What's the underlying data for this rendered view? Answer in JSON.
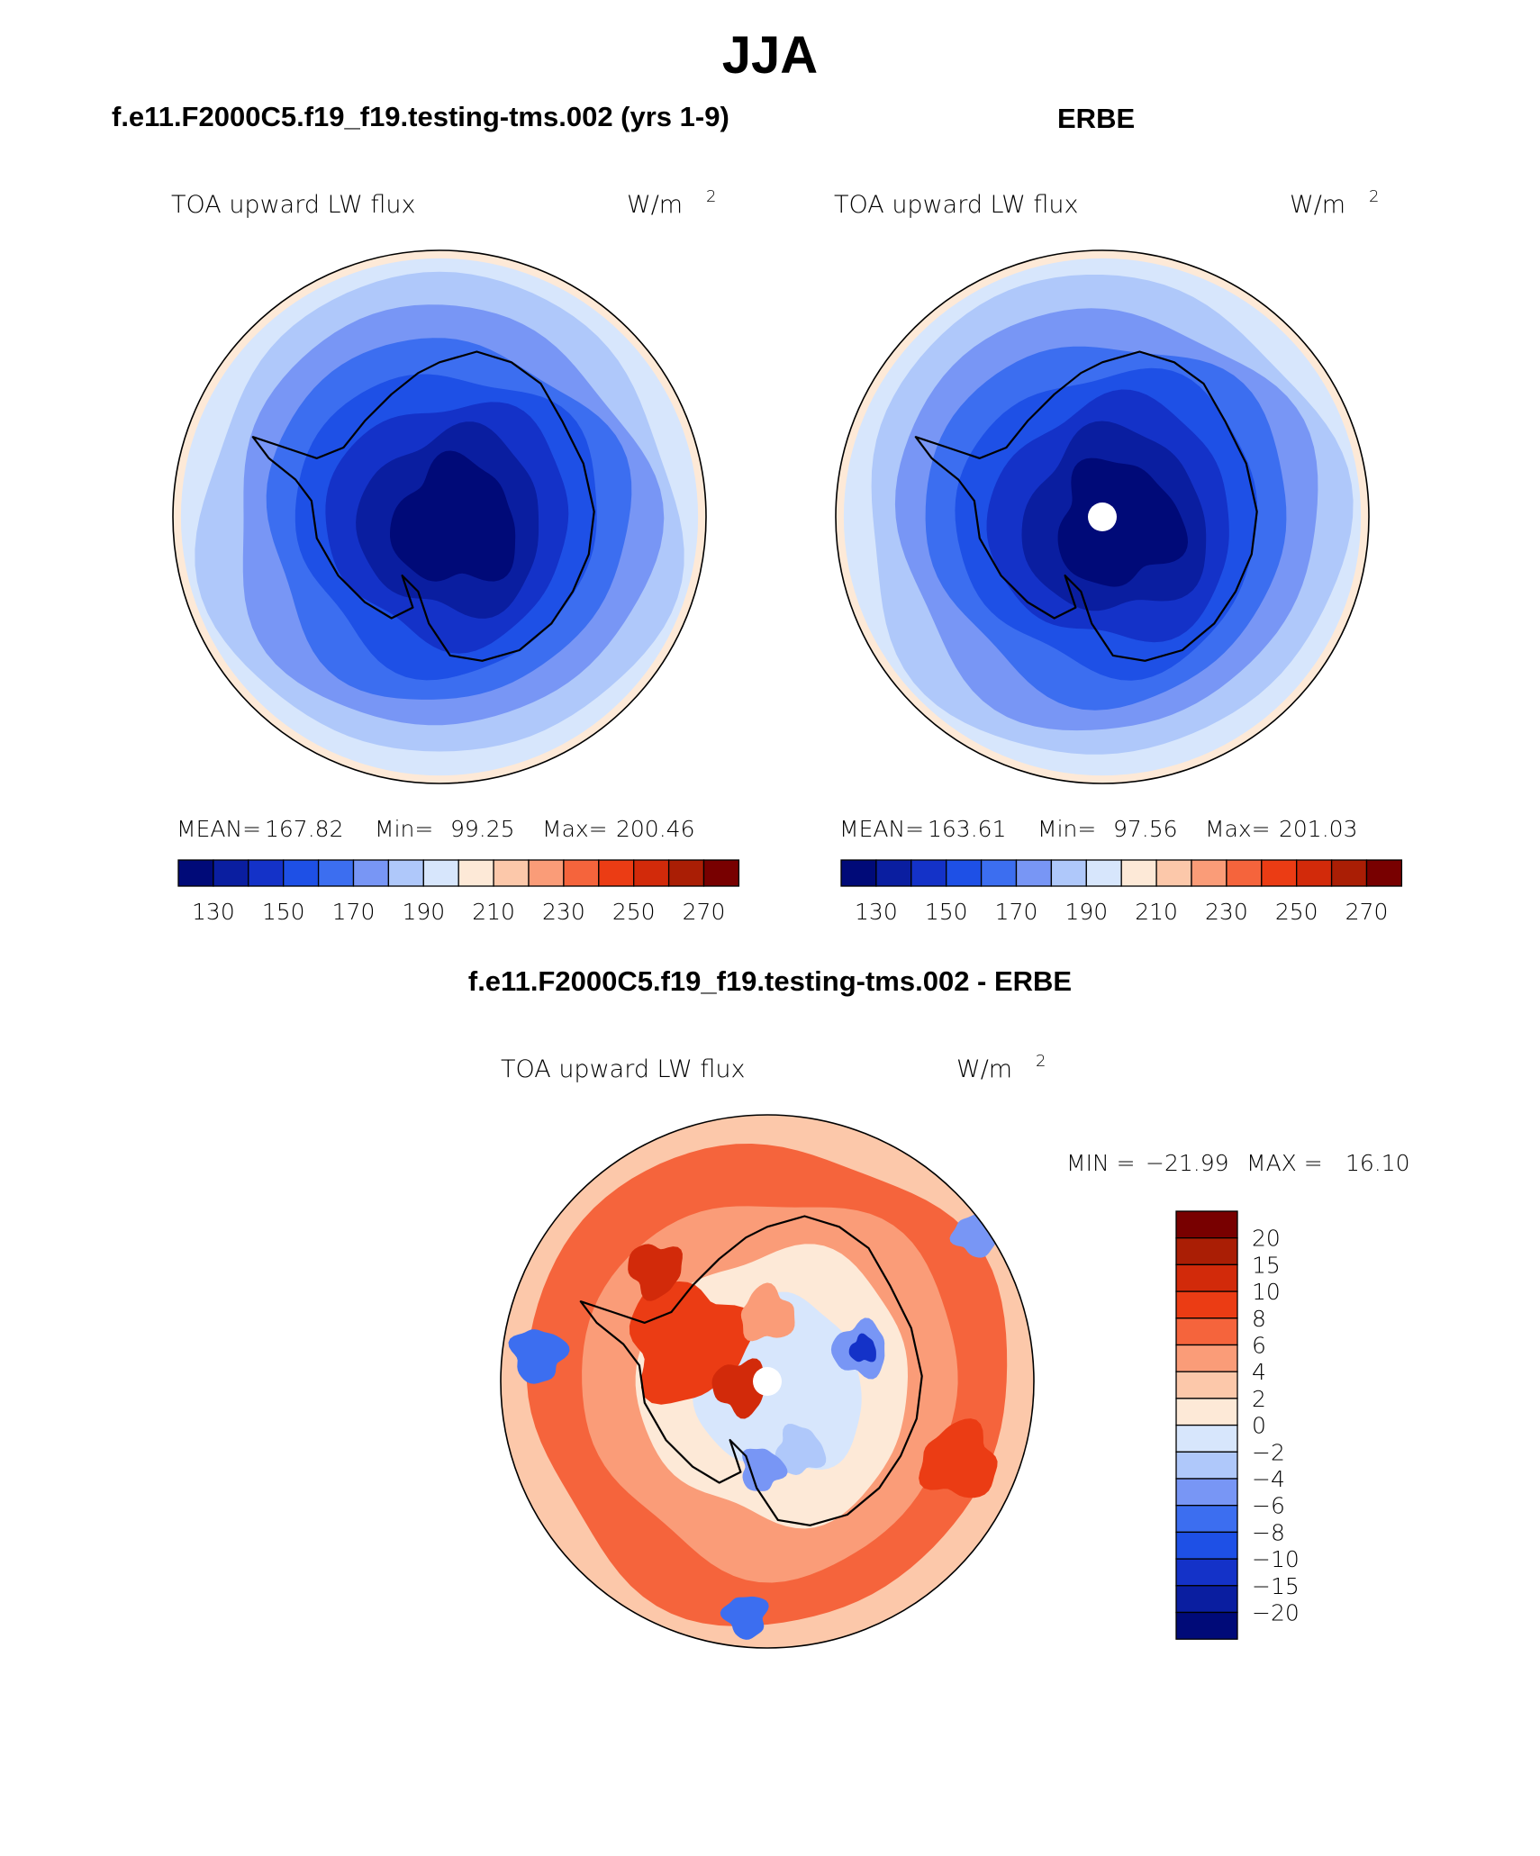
{
  "page": {
    "title": "JJA",
    "left_header": "f.e11.F2000C5.f19_f19.testing-tms.002 (yrs 1-9)",
    "right_header": "ERBE",
    "diff_header": "f.e11.F2000C5.f19_f19.testing-tms.002 - ERBE"
  },
  "chart_data": [
    {
      "type": "heatmap",
      "projection": "south polar stereographic",
      "title": "TOA upward LW flux",
      "units": "W/m",
      "units_exponent": "2",
      "stats": {
        "mean_label": "MEAN=",
        "mean": "167.82",
        "min_label": "Min=",
        "min": "99.25",
        "max_label": "Max=",
        "max": "200.46"
      },
      "colorbar": {
        "levels": [
          130,
          140,
          150,
          160,
          170,
          180,
          190,
          200,
          210,
          220,
          230,
          240,
          250,
          260,
          270
        ],
        "tick_labels": [
          "130",
          "150",
          "170",
          "190",
          "210",
          "230",
          "250",
          "270"
        ],
        "colors": [
          "#000a78",
          "#0a1ea0",
          "#1432c8",
          "#1e50e6",
          "#3c6ef0",
          "#7896f5",
          "#afc8fa",
          "#d7e6fc",
          "#fde9d7",
          "#fcc8aa",
          "#fa9c78",
          "#f5643c",
          "#eb3c14",
          "#d22a0a",
          "#aa1e05",
          "#780000"
        ]
      },
      "rings": [
        {
          "level": 180,
          "color": "#afc8fa"
        },
        {
          "level": 170,
          "color": "#7896f5"
        },
        {
          "level": 160,
          "color": "#3c6ef0"
        },
        {
          "level": 150,
          "color": "#1e50e6"
        },
        {
          "level": 140,
          "color": "#1432c8"
        },
        {
          "level": 130,
          "color": "#0a1ea0"
        },
        {
          "level": 120,
          "color": "#000a78"
        }
      ],
      "background_color": "#d7e6fc",
      "edge_color": "#fde9d7",
      "missing_pole": false
    },
    {
      "type": "heatmap",
      "projection": "south polar stereographic",
      "title": "TOA upward LW flux",
      "units": "W/m",
      "units_exponent": "2",
      "stats": {
        "mean_label": "MEAN=",
        "mean": "163.61",
        "min_label": "Min=",
        "min": "97.56",
        "max_label": "Max=",
        "max": "201.03"
      },
      "colorbar": {
        "levels": [
          130,
          140,
          150,
          160,
          170,
          180,
          190,
          200,
          210,
          220,
          230,
          240,
          250,
          260,
          270
        ],
        "tick_labels": [
          "130",
          "150",
          "170",
          "190",
          "210",
          "230",
          "250",
          "270"
        ],
        "colors": [
          "#000a78",
          "#0a1ea0",
          "#1432c8",
          "#1e50e6",
          "#3c6ef0",
          "#7896f5",
          "#afc8fa",
          "#d7e6fc",
          "#fde9d7",
          "#fcc8aa",
          "#fa9c78",
          "#f5643c",
          "#eb3c14",
          "#d22a0a",
          "#aa1e05",
          "#780000"
        ]
      },
      "rings": [
        {
          "level": 180,
          "color": "#afc8fa"
        },
        {
          "level": 170,
          "color": "#7896f5"
        },
        {
          "level": 160,
          "color": "#3c6ef0"
        },
        {
          "level": 150,
          "color": "#1e50e6"
        },
        {
          "level": 140,
          "color": "#1432c8"
        },
        {
          "level": 130,
          "color": "#0a1ea0"
        },
        {
          "level": 120,
          "color": "#000a78"
        }
      ],
      "background_color": "#d7e6fc",
      "edge_color": "#fde9d7",
      "missing_pole": true
    },
    {
      "type": "heatmap",
      "projection": "south polar stereographic",
      "title": "TOA upward LW flux",
      "units": "W/m",
      "units_exponent": "2",
      "stats": {
        "min_label": "MIN =",
        "min": "−21.99",
        "max_label": "MAX =",
        "max": "16.10"
      },
      "colorbar": {
        "tick_labels": [
          "20",
          "15",
          "10",
          "8",
          "6",
          "4",
          "2",
          "0",
          "−2",
          "−4",
          "−6",
          "−8",
          "−10",
          "−15",
          "−20"
        ],
        "colors": [
          "#780000",
          "#aa1e05",
          "#d22a0a",
          "#eb3c14",
          "#f5643c",
          "#fa9c78",
          "#fcc8aa",
          "#fde9d7",
          "#d7e6fc",
          "#afc8fa",
          "#7896f5",
          "#3c6ef0",
          "#1e50e6",
          "#1432c8",
          "#0a1ea0",
          "#000a78"
        ]
      },
      "rings": [
        {
          "level": 4,
          "color": "#f5643c"
        },
        {
          "level": 2,
          "color": "#fa9c78"
        },
        {
          "level": 0,
          "color": "#fde9d7"
        },
        {
          "level": -2,
          "color": "#d7e6fc"
        }
      ],
      "background_color": "#fcc8aa",
      "missing_pole": true
    }
  ]
}
